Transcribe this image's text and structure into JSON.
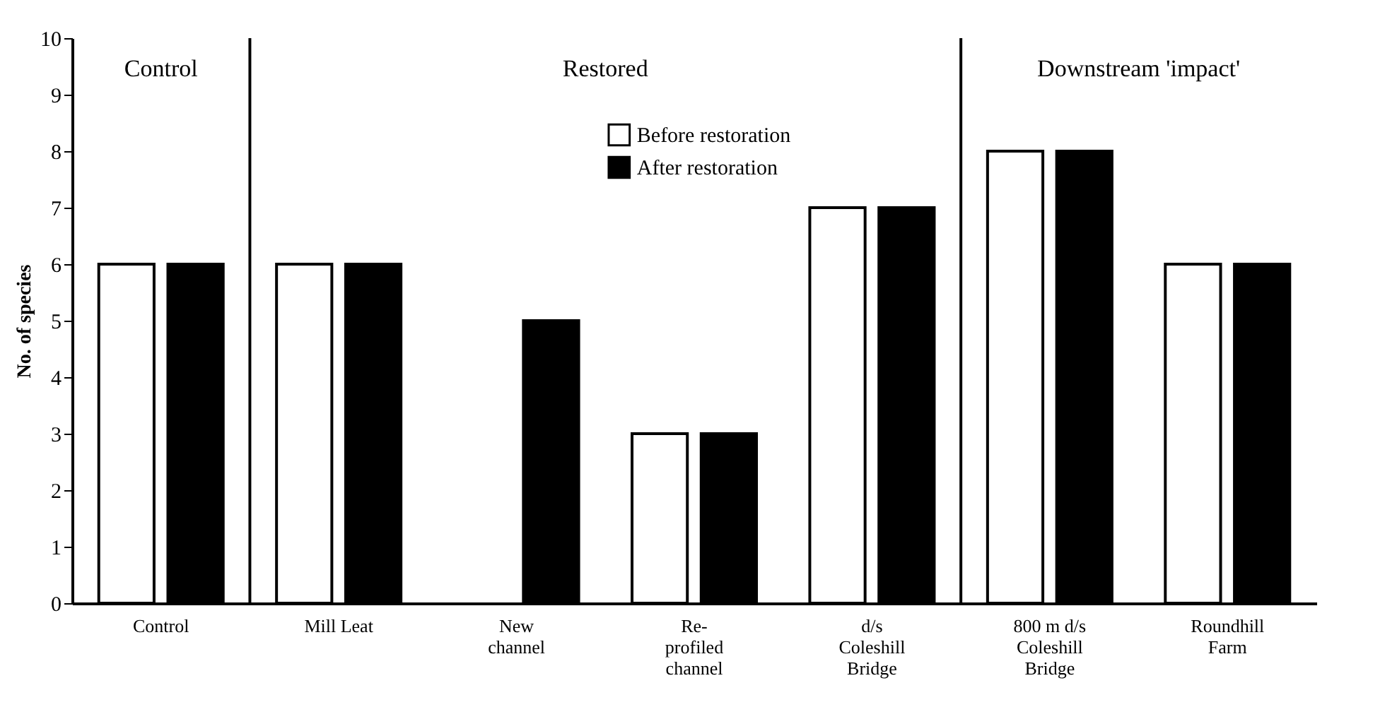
{
  "chart_data": {
    "type": "bar",
    "ylabel": "No. of species",
    "categories": [
      "Control",
      "Mill Leat",
      "New\nchannel",
      "Re-\nprofiled\nchannel",
      "d/s\nColeshill\nBridge",
      "800 m d/s\nColeshill\nBridge",
      "Roundhill\nFarm"
    ],
    "series": [
      {
        "name": "Before restoration",
        "color": "#ffffff",
        "values": [
          6,
          6,
          null,
          3,
          7,
          8,
          6
        ]
      },
      {
        "name": "After restoration",
        "color": "#000000",
        "values": [
          6,
          6,
          5,
          3,
          7,
          8,
          6
        ]
      }
    ],
    "ylim": [
      0,
      10
    ],
    "yticks": [
      0,
      1,
      2,
      3,
      4,
      5,
      6,
      7,
      8,
      9,
      10
    ],
    "annotations": [
      "Control",
      "Restored",
      "Downstream 'impact'"
    ],
    "grid": false,
    "legend": "top"
  }
}
